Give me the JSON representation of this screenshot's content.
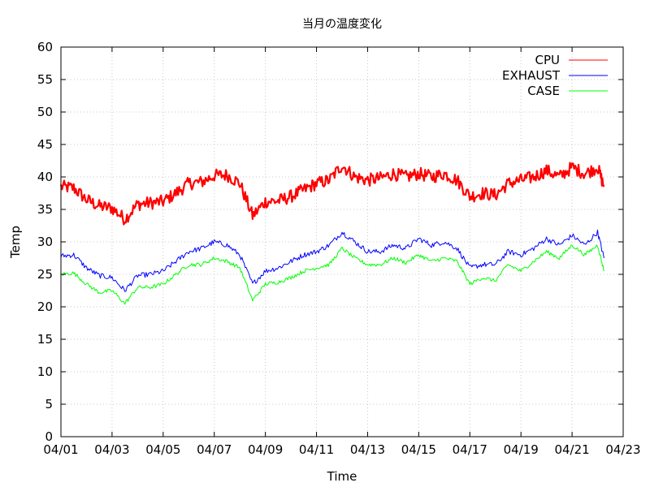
{
  "chart_data": {
    "type": "line",
    "title": "当月の温度変化",
    "xlabel": "Time",
    "ylabel": "Temp",
    "ylim": [
      0,
      60
    ],
    "yticks": [
      0,
      5,
      10,
      15,
      20,
      25,
      30,
      35,
      40,
      45,
      50,
      55,
      60
    ],
    "xlim": [
      "04/01",
      "04/23"
    ],
    "xticks": [
      "04/01",
      "04/03",
      "04/05",
      "04/07",
      "04/09",
      "04/11",
      "04/13",
      "04/15",
      "04/17",
      "04/19",
      "04/21",
      "04/23"
    ],
    "grid": true,
    "legend_position": "top-right",
    "x": [
      "04/01 00:00",
      "04/01 12:00",
      "04/02 00:00",
      "04/02 12:00",
      "04/03 00:00",
      "04/03 12:00",
      "04/04 00:00",
      "04/04 12:00",
      "04/05 00:00",
      "04/05 12:00",
      "04/06 00:00",
      "04/06 12:00",
      "04/07 00:00",
      "04/07 12:00",
      "04/08 00:00",
      "04/08 12:00",
      "04/09 00:00",
      "04/09 12:00",
      "04/10 00:00",
      "04/10 12:00",
      "04/11 00:00",
      "04/11 12:00",
      "04/12 00:00",
      "04/12 12:00",
      "04/13 00:00",
      "04/13 12:00",
      "04/14 00:00",
      "04/14 12:00",
      "04/15 00:00",
      "04/15 12:00",
      "04/16 00:00",
      "04/16 12:00",
      "04/17 00:00",
      "04/17 12:00",
      "04/18 00:00",
      "04/18 12:00",
      "04/19 00:00",
      "04/19 12:00",
      "04/20 00:00",
      "04/20 12:00",
      "04/21 00:00",
      "04/21 12:00",
      "04/22 00:00",
      "04/22 06:00"
    ],
    "series": [
      {
        "name": "CPU",
        "color": "#ff0000",
        "noise": 1.0,
        "values": [
          38.5,
          38.3,
          36.5,
          35.5,
          35.2,
          33.5,
          35.8,
          36.0,
          36.2,
          37.5,
          39.0,
          39.2,
          40.2,
          40.3,
          39.0,
          34.0,
          36.2,
          36.3,
          37.0,
          38.0,
          39.0,
          39.5,
          41.8,
          40.0,
          39.5,
          39.8,
          40.5,
          40.0,
          40.5,
          40.0,
          40.5,
          39.5,
          37.0,
          37.5,
          37.2,
          39.0,
          39.5,
          40.0,
          41.0,
          40.0,
          41.5,
          40.5,
          41.5,
          38.5
        ]
      },
      {
        "name": "EXHAUST",
        "color": "#0000ff",
        "noise": 0.4,
        "values": [
          27.8,
          28.0,
          26.0,
          24.8,
          24.5,
          22.5,
          24.8,
          25.0,
          25.5,
          27.0,
          28.5,
          29.0,
          30.0,
          29.5,
          28.0,
          23.5,
          25.5,
          26.0,
          27.0,
          28.0,
          28.5,
          29.5,
          31.5,
          30.0,
          28.5,
          28.5,
          29.5,
          29.0,
          30.5,
          29.5,
          30.0,
          29.0,
          26.0,
          26.5,
          26.5,
          28.5,
          28.0,
          29.0,
          30.5,
          29.5,
          31.0,
          29.5,
          31.5,
          27.5
        ]
      },
      {
        "name": "CASE",
        "color": "#00ff00",
        "noise": 0.3,
        "values": [
          25.0,
          25.2,
          23.5,
          22.2,
          22.5,
          20.5,
          23.0,
          23.0,
          23.5,
          25.0,
          26.5,
          26.5,
          27.5,
          27.0,
          26.0,
          21.0,
          23.5,
          23.8,
          24.5,
          25.5,
          26.0,
          26.5,
          29.0,
          27.5,
          26.5,
          26.5,
          27.5,
          26.8,
          28.0,
          27.0,
          27.5,
          27.0,
          23.5,
          24.5,
          24.0,
          26.5,
          25.5,
          27.0,
          28.5,
          27.5,
          29.5,
          28.0,
          29.5,
          25.5
        ]
      }
    ]
  }
}
